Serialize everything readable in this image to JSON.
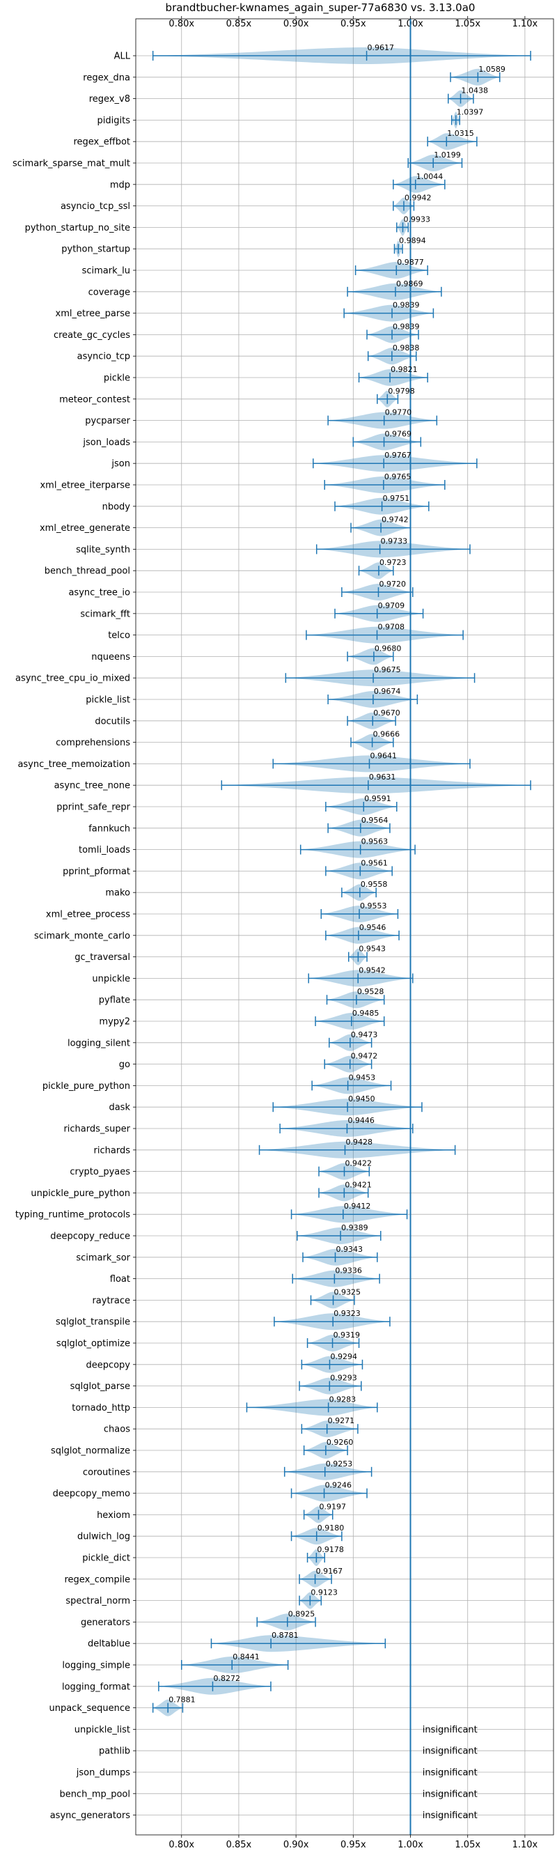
{
  "chart_data": {
    "type": "violin",
    "title": "brandtbucher-kwnames_again_super-77a6830 vs. 3.13.0a0",
    "xlim": [
      0.76,
      1.125
    ],
    "x_ticks": [
      0.8,
      0.85,
      0.9,
      0.95,
      1.0,
      1.05,
      1.1
    ],
    "x_tick_labels": [
      "0.80x",
      "0.85x",
      "0.90x",
      "0.95x",
      "1.00x",
      "1.05x",
      "1.10x"
    ],
    "reference_line": 1.0,
    "grid": true,
    "insignificant_label": "insignificant",
    "benchmarks": [
      {
        "name": "ALL",
        "value": 0.9617,
        "label": "0.9617",
        "min": 0.775,
        "max": 1.105
      },
      {
        "name": "regex_dna",
        "value": 1.0589,
        "label": "1.0589",
        "min": 1.035,
        "max": 1.078
      },
      {
        "name": "regex_v8",
        "value": 1.0438,
        "label": "1.0438",
        "min": 1.033,
        "max": 1.055
      },
      {
        "name": "pidigits",
        "value": 1.0397,
        "label": "1.0397",
        "min": 1.036,
        "max": 1.043
      },
      {
        "name": "regex_effbot",
        "value": 1.0315,
        "label": "1.0315",
        "min": 1.015,
        "max": 1.058
      },
      {
        "name": "scimark_sparse_mat_mult",
        "value": 1.0199,
        "label": "1.0199",
        "min": 0.998,
        "max": 1.045
      },
      {
        "name": "mdp",
        "value": 1.0044,
        "label": "1.0044",
        "min": 0.985,
        "max": 1.03
      },
      {
        "name": "asyncio_tcp_ssl",
        "value": 0.9942,
        "label": "0.9942",
        "min": 0.985,
        "max": 1.003
      },
      {
        "name": "python_startup_no_site",
        "value": 0.9933,
        "label": "0.9933",
        "min": 0.988,
        "max": 0.998
      },
      {
        "name": "python_startup",
        "value": 0.9894,
        "label": "0.9894",
        "min": 0.986,
        "max": 0.993
      },
      {
        "name": "scimark_lu",
        "value": 0.9877,
        "label": "0.9877",
        "min": 0.952,
        "max": 1.015
      },
      {
        "name": "coverage",
        "value": 0.9869,
        "label": "0.9869",
        "min": 0.945,
        "max": 1.027
      },
      {
        "name": "xml_etree_parse",
        "value": 0.9839,
        "label": "0.9839",
        "min": 0.942,
        "max": 1.02
      },
      {
        "name": "create_gc_cycles",
        "value": 0.9839,
        "label": "0.9839",
        "min": 0.962,
        "max": 1.007
      },
      {
        "name": "asyncio_tcp",
        "value": 0.9838,
        "label": "0.9838",
        "min": 0.963,
        "max": 1.005
      },
      {
        "name": "pickle",
        "value": 0.9821,
        "label": "0.9821",
        "min": 0.955,
        "max": 1.015
      },
      {
        "name": "meteor_contest",
        "value": 0.9798,
        "label": "0.9798",
        "min": 0.971,
        "max": 0.989
      },
      {
        "name": "pycparser",
        "value": 0.977,
        "label": "0.9770",
        "min": 0.928,
        "max": 1.023
      },
      {
        "name": "json_loads",
        "value": 0.9769,
        "label": "0.9769",
        "min": 0.95,
        "max": 1.009
      },
      {
        "name": "json",
        "value": 0.9767,
        "label": "0.9767",
        "min": 0.915,
        "max": 1.058
      },
      {
        "name": "xml_etree_iterparse",
        "value": 0.9765,
        "label": "0.9765",
        "min": 0.925,
        "max": 1.03
      },
      {
        "name": "nbody",
        "value": 0.9751,
        "label": "0.9751",
        "min": 0.934,
        "max": 1.016
      },
      {
        "name": "xml_etree_generate",
        "value": 0.9742,
        "label": "0.9742",
        "min": 0.948,
        "max": 1.0
      },
      {
        "name": "sqlite_synth",
        "value": 0.9733,
        "label": "0.9733",
        "min": 0.918,
        "max": 1.052
      },
      {
        "name": "bench_thread_pool",
        "value": 0.9723,
        "label": "0.9723",
        "min": 0.955,
        "max": 0.985
      },
      {
        "name": "async_tree_io",
        "value": 0.972,
        "label": "0.9720",
        "min": 0.94,
        "max": 1.002
      },
      {
        "name": "scimark_fft",
        "value": 0.9709,
        "label": "0.9709",
        "min": 0.934,
        "max": 1.011
      },
      {
        "name": "telco",
        "value": 0.9708,
        "label": "0.9708",
        "min": 0.909,
        "max": 1.046
      },
      {
        "name": "nqueens",
        "value": 0.968,
        "label": "0.9680",
        "min": 0.945,
        "max": 0.985
      },
      {
        "name": "async_tree_cpu_io_mixed",
        "value": 0.9675,
        "label": "0.9675",
        "min": 0.891,
        "max": 1.056
      },
      {
        "name": "pickle_list",
        "value": 0.9674,
        "label": "0.9674",
        "min": 0.928,
        "max": 1.006
      },
      {
        "name": "docutils",
        "value": 0.967,
        "label": "0.9670",
        "min": 0.945,
        "max": 0.987
      },
      {
        "name": "comprehensions",
        "value": 0.9666,
        "label": "0.9666",
        "min": 0.948,
        "max": 0.985
      },
      {
        "name": "async_tree_memoization",
        "value": 0.9641,
        "label": "0.9641",
        "min": 0.88,
        "max": 1.052
      },
      {
        "name": "async_tree_none",
        "value": 0.9631,
        "label": "0.9631",
        "min": 0.835,
        "max": 1.105
      },
      {
        "name": "pprint_safe_repr",
        "value": 0.9591,
        "label": "0.9591",
        "min": 0.926,
        "max": 0.988
      },
      {
        "name": "fannkuch",
        "value": 0.9564,
        "label": "0.9564",
        "min": 0.928,
        "max": 0.982
      },
      {
        "name": "tomli_loads",
        "value": 0.9563,
        "label": "0.9563",
        "min": 0.904,
        "max": 1.004
      },
      {
        "name": "pprint_pformat",
        "value": 0.9561,
        "label": "0.9561",
        "min": 0.926,
        "max": 0.984
      },
      {
        "name": "mako",
        "value": 0.9558,
        "label": "0.9558",
        "min": 0.94,
        "max": 0.97
      },
      {
        "name": "xml_etree_process",
        "value": 0.9553,
        "label": "0.9553",
        "min": 0.922,
        "max": 0.989
      },
      {
        "name": "scimark_monte_carlo",
        "value": 0.9546,
        "label": "0.9546",
        "min": 0.926,
        "max": 0.99
      },
      {
        "name": "gc_traversal",
        "value": 0.9543,
        "label": "0.9543",
        "min": 0.946,
        "max": 0.962
      },
      {
        "name": "unpickle",
        "value": 0.9542,
        "label": "0.9542",
        "min": 0.911,
        "max": 1.002
      },
      {
        "name": "pyflate",
        "value": 0.9528,
        "label": "0.9528",
        "min": 0.927,
        "max": 0.977
      },
      {
        "name": "mypy2",
        "value": 0.9485,
        "label": "0.9485",
        "min": 0.917,
        "max": 0.977
      },
      {
        "name": "logging_silent",
        "value": 0.9473,
        "label": "0.9473",
        "min": 0.929,
        "max": 0.966
      },
      {
        "name": "go",
        "value": 0.9472,
        "label": "0.9472",
        "min": 0.925,
        "max": 0.966
      },
      {
        "name": "pickle_pure_python",
        "value": 0.9453,
        "label": "0.9453",
        "min": 0.914,
        "max": 0.983
      },
      {
        "name": "dask",
        "value": 0.945,
        "label": "0.9450",
        "min": 0.88,
        "max": 1.01
      },
      {
        "name": "richards_super",
        "value": 0.9446,
        "label": "0.9446",
        "min": 0.886,
        "max": 1.002
      },
      {
        "name": "richards",
        "value": 0.9428,
        "label": "0.9428",
        "min": 0.868,
        "max": 1.039
      },
      {
        "name": "crypto_pyaes",
        "value": 0.9422,
        "label": "0.9422",
        "min": 0.92,
        "max": 0.964
      },
      {
        "name": "unpickle_pure_python",
        "value": 0.9421,
        "label": "0.9421",
        "min": 0.92,
        "max": 0.963
      },
      {
        "name": "typing_runtime_protocols",
        "value": 0.9412,
        "label": "0.9412",
        "min": 0.896,
        "max": 0.997
      },
      {
        "name": "deepcopy_reduce",
        "value": 0.9389,
        "label": "0.9389",
        "min": 0.901,
        "max": 0.974
      },
      {
        "name": "scimark_sor",
        "value": 0.9343,
        "label": "0.9343",
        "min": 0.906,
        "max": 0.971
      },
      {
        "name": "float",
        "value": 0.9336,
        "label": "0.9336",
        "min": 0.897,
        "max": 0.973
      },
      {
        "name": "raytrace",
        "value": 0.9325,
        "label": "0.9325",
        "min": 0.913,
        "max": 0.951
      },
      {
        "name": "sqlglot_transpile",
        "value": 0.9323,
        "label": "0.9323",
        "min": 0.881,
        "max": 0.982
      },
      {
        "name": "sqlglot_optimize",
        "value": 0.9319,
        "label": "0.9319",
        "min": 0.91,
        "max": 0.955
      },
      {
        "name": "deepcopy",
        "value": 0.9294,
        "label": "0.9294",
        "min": 0.905,
        "max": 0.958
      },
      {
        "name": "sqlglot_parse",
        "value": 0.9293,
        "label": "0.9293",
        "min": 0.903,
        "max": 0.957
      },
      {
        "name": "tornado_http",
        "value": 0.9283,
        "label": "0.9283",
        "min": 0.857,
        "max": 0.971
      },
      {
        "name": "chaos",
        "value": 0.9271,
        "label": "0.9271",
        "min": 0.905,
        "max": 0.954
      },
      {
        "name": "sqlglot_normalize",
        "value": 0.926,
        "label": "0.9260",
        "min": 0.907,
        "max": 0.945
      },
      {
        "name": "coroutines",
        "value": 0.9253,
        "label": "0.9253",
        "min": 0.89,
        "max": 0.966
      },
      {
        "name": "deepcopy_memo",
        "value": 0.9246,
        "label": "0.9246",
        "min": 0.896,
        "max": 0.962
      },
      {
        "name": "hexiom",
        "value": 0.9197,
        "label": "0.9197",
        "min": 0.907,
        "max": 0.932
      },
      {
        "name": "dulwich_log",
        "value": 0.918,
        "label": "0.9180",
        "min": 0.896,
        "max": 0.94
      },
      {
        "name": "pickle_dict",
        "value": 0.9178,
        "label": "0.9178",
        "min": 0.91,
        "max": 0.925
      },
      {
        "name": "regex_compile",
        "value": 0.9167,
        "label": "0.9167",
        "min": 0.903,
        "max": 0.931
      },
      {
        "name": "spectral_norm",
        "value": 0.9123,
        "label": "0.9123",
        "min": 0.903,
        "max": 0.922
      },
      {
        "name": "generators",
        "value": 0.8925,
        "label": "0.8925",
        "min": 0.866,
        "max": 0.917
      },
      {
        "name": "deltablue",
        "value": 0.8781,
        "label": "0.8781",
        "min": 0.826,
        "max": 0.978
      },
      {
        "name": "logging_simple",
        "value": 0.8441,
        "label": "0.8441",
        "min": 0.8,
        "max": 0.893
      },
      {
        "name": "logging_format",
        "value": 0.8272,
        "label": "0.8272",
        "min": 0.78,
        "max": 0.878
      },
      {
        "name": "unpack_sequence",
        "value": 0.7881,
        "label": "0.7881",
        "min": 0.775,
        "max": 0.801
      },
      {
        "name": "unpickle_list",
        "insignificant": true
      },
      {
        "name": "pathlib",
        "insignificant": true
      },
      {
        "name": "json_dumps",
        "insignificant": true
      },
      {
        "name": "bench_mp_pool",
        "insignificant": true
      },
      {
        "name": "async_generators",
        "insignificant": true
      }
    ]
  }
}
